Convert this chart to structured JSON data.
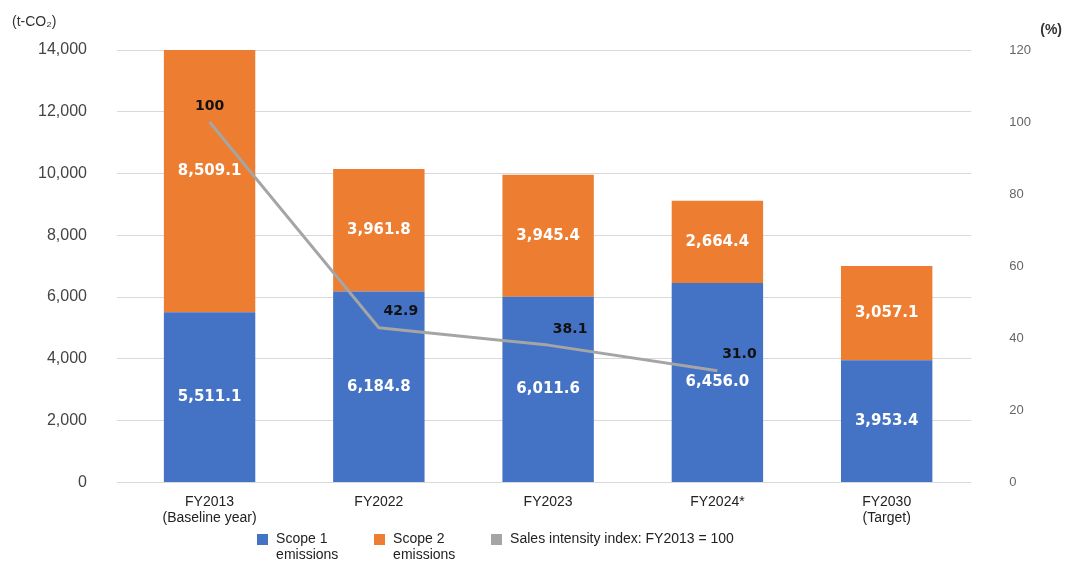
{
  "chart_data": {
    "type": "bar",
    "stacked": true,
    "ylabel": "(t-CO₂)",
    "y2label": "(%)",
    "categories": [
      "FY2013 (Baseline year)",
      "FY2022",
      "FY2023",
      "FY2024*",
      "FY2030 (Target)"
    ],
    "series": [
      {
        "name": "Scope 1 emissions",
        "color": "#4472c4",
        "values": [
          5511.1,
          6184.8,
          6011.6,
          6456.0,
          3953.4
        ],
        "value_labels": [
          "5,511.1",
          "6,184.8",
          "6,011.6",
          "6,456.0",
          "3,953.4"
        ]
      },
      {
        "name": "Scope 2 emissions",
        "color": "#ed7d31",
        "values": [
          8509.1,
          3961.8,
          3945.4,
          2664.4,
          3057.1
        ],
        "value_labels": [
          "8,509.1",
          "3,961.8",
          "3,945.4",
          "2,664.4",
          "3,057.1"
        ]
      },
      {
        "name": "Sales intensity index: FY2013 = 100",
        "type": "line",
        "axis": "y2",
        "color": "#a5a5a5",
        "marker": "none",
        "values": [
          100,
          42.9,
          38.1,
          31.0,
          null
        ],
        "value_labels": [
          "100",
          "42.9",
          "38.1",
          "31.0",
          null
        ]
      }
    ],
    "ylim": [
      0,
      14000
    ],
    "yticks": [
      0,
      {
        "value": 2000,
        "label": "2,000"
      },
      {
        "value": 4000,
        "label": "4,000"
      },
      {
        "value": 6000,
        "label": "6,000"
      },
      {
        "value": 8000,
        "label": "8,000"
      },
      {
        "value": 10000,
        "label": "10,000"
      },
      {
        "value": 12000,
        "label": "12,000"
      },
      {
        "value": 14000,
        "label": "14,000"
      }
    ],
    "y2lim": [
      0,
      120
    ],
    "y2ticks": [
      0,
      20,
      40,
      60,
      80,
      100,
      120
    ],
    "grid": "y",
    "legend": "bottom"
  }
}
